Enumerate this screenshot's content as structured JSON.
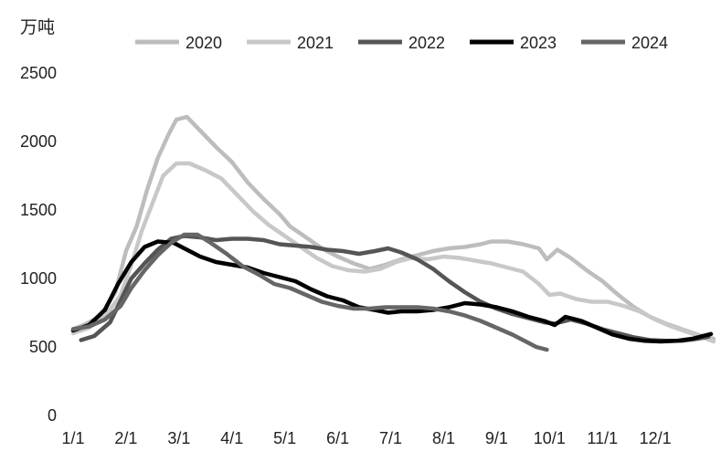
{
  "chart_data": {
    "type": "line",
    "title": "",
    "ylabel": "万吨",
    "xlabel": "",
    "ylim": [
      0,
      2500
    ],
    "yticks": [
      0,
      500,
      1000,
      1500,
      2000,
      2500
    ],
    "x_tick_labels": [
      "1/1",
      "2/1",
      "3/1",
      "4/1",
      "5/1",
      "6/1",
      "7/1",
      "8/1",
      "9/1",
      "10/1",
      "11/1",
      "12/1"
    ],
    "x_unit": "month (1 = Jan 1, 13 = next Jan 1)",
    "grid": false,
    "legend_position": "top",
    "series": [
      {
        "name": "2020",
        "color": "#bdbdbd",
        "points": [
          [
            1.0,
            630
          ],
          [
            1.2,
            660
          ],
          [
            1.5,
            720
          ],
          [
            1.8,
            900
          ],
          [
            2.0,
            1200
          ],
          [
            2.2,
            1380
          ],
          [
            2.4,
            1650
          ],
          [
            2.6,
            1880
          ],
          [
            2.8,
            2050
          ],
          [
            2.95,
            2160
          ],
          [
            3.15,
            2180
          ],
          [
            3.4,
            2080
          ],
          [
            3.7,
            1960
          ],
          [
            4.0,
            1850
          ],
          [
            4.3,
            1700
          ],
          [
            4.6,
            1580
          ],
          [
            4.9,
            1470
          ],
          [
            5.1,
            1380
          ],
          [
            5.4,
            1300
          ],
          [
            5.7,
            1220
          ],
          [
            6.0,
            1160
          ],
          [
            6.3,
            1110
          ],
          [
            6.6,
            1070
          ],
          [
            6.9,
            1100
          ],
          [
            7.2,
            1140
          ],
          [
            7.5,
            1170
          ],
          [
            7.8,
            1200
          ],
          [
            8.1,
            1220
          ],
          [
            8.4,
            1230
          ],
          [
            8.7,
            1250
          ],
          [
            8.9,
            1270
          ],
          [
            9.2,
            1270
          ],
          [
            9.5,
            1250
          ],
          [
            9.8,
            1220
          ],
          [
            9.95,
            1140
          ],
          [
            10.15,
            1210
          ],
          [
            10.4,
            1150
          ],
          [
            10.7,
            1060
          ],
          [
            11.0,
            980
          ],
          [
            11.3,
            880
          ],
          [
            11.6,
            790
          ],
          [
            11.9,
            720
          ],
          [
            12.2,
            670
          ],
          [
            12.5,
            630
          ],
          [
            12.8,
            590
          ],
          [
            13.1,
            560
          ]
        ]
      },
      {
        "name": "2021",
        "color": "#c8c8c8",
        "points": [
          [
            1.0,
            600
          ],
          [
            1.3,
            640
          ],
          [
            1.6,
            720
          ],
          [
            1.9,
            880
          ],
          [
            2.1,
            1100
          ],
          [
            2.3,
            1350
          ],
          [
            2.5,
            1550
          ],
          [
            2.7,
            1750
          ],
          [
            2.95,
            1840
          ],
          [
            3.2,
            1840
          ],
          [
            3.5,
            1790
          ],
          [
            3.8,
            1730
          ],
          [
            4.1,
            1610
          ],
          [
            4.4,
            1490
          ],
          [
            4.7,
            1390
          ],
          [
            5.0,
            1310
          ],
          [
            5.3,
            1230
          ],
          [
            5.6,
            1150
          ],
          [
            5.9,
            1090
          ],
          [
            6.2,
            1060
          ],
          [
            6.5,
            1050
          ],
          [
            6.8,
            1070
          ],
          [
            7.1,
            1120
          ],
          [
            7.4,
            1150
          ],
          [
            7.7,
            1140
          ],
          [
            8.0,
            1160
          ],
          [
            8.3,
            1150
          ],
          [
            8.6,
            1130
          ],
          [
            8.9,
            1110
          ],
          [
            9.2,
            1080
          ],
          [
            9.5,
            1050
          ],
          [
            9.8,
            960
          ],
          [
            10.0,
            880
          ],
          [
            10.2,
            890
          ],
          [
            10.5,
            850
          ],
          [
            10.8,
            830
          ],
          [
            11.1,
            830
          ],
          [
            11.4,
            800
          ],
          [
            11.7,
            760
          ],
          [
            12.0,
            700
          ],
          [
            12.3,
            650
          ],
          [
            12.6,
            610
          ],
          [
            12.9,
            570
          ],
          [
            13.1,
            540
          ]
        ]
      },
      {
        "name": "2022",
        "color": "#555555",
        "points": [
          [
            1.15,
            550
          ],
          [
            1.4,
            580
          ],
          [
            1.7,
            680
          ],
          [
            1.9,
            840
          ],
          [
            2.1,
            1000
          ],
          [
            2.35,
            1110
          ],
          [
            2.6,
            1210
          ],
          [
            2.85,
            1290
          ],
          [
            3.1,
            1310
          ],
          [
            3.4,
            1300
          ],
          [
            3.7,
            1280
          ],
          [
            4.0,
            1290
          ],
          [
            4.3,
            1290
          ],
          [
            4.6,
            1280
          ],
          [
            4.9,
            1250
          ],
          [
            5.2,
            1240
          ],
          [
            5.5,
            1230
          ],
          [
            5.8,
            1210
          ],
          [
            6.1,
            1200
          ],
          [
            6.4,
            1180
          ],
          [
            6.7,
            1200
          ],
          [
            6.95,
            1220
          ],
          [
            7.2,
            1190
          ],
          [
            7.5,
            1140
          ],
          [
            7.8,
            1070
          ],
          [
            8.1,
            980
          ],
          [
            8.4,
            900
          ],
          [
            8.7,
            830
          ],
          [
            9.0,
            780
          ],
          [
            9.3,
            740
          ],
          [
            9.6,
            710
          ],
          [
            9.9,
            680
          ],
          [
            10.1,
            670
          ],
          [
            10.4,
            700
          ],
          [
            10.7,
            670
          ],
          [
            11.0,
            630
          ],
          [
            11.3,
            600
          ],
          [
            11.6,
            570
          ],
          [
            11.9,
            550
          ],
          [
            12.2,
            545
          ],
          [
            12.5,
            545
          ],
          [
            12.8,
            560
          ],
          [
            13.0,
            575
          ]
        ]
      },
      {
        "name": "2023",
        "color": "#000000",
        "points": [
          [
            1.0,
            620
          ],
          [
            1.3,
            660
          ],
          [
            1.6,
            770
          ],
          [
            1.85,
            960
          ],
          [
            2.1,
            1120
          ],
          [
            2.35,
            1230
          ],
          [
            2.6,
            1270
          ],
          [
            2.9,
            1260
          ],
          [
            3.15,
            1210
          ],
          [
            3.4,
            1160
          ],
          [
            3.7,
            1120
          ],
          [
            4.0,
            1100
          ],
          [
            4.3,
            1080
          ],
          [
            4.6,
            1040
          ],
          [
            4.9,
            1010
          ],
          [
            5.2,
            980
          ],
          [
            5.5,
            920
          ],
          [
            5.8,
            870
          ],
          [
            6.1,
            840
          ],
          [
            6.4,
            790
          ],
          [
            6.7,
            770
          ],
          [
            6.95,
            750
          ],
          [
            7.2,
            760
          ],
          [
            7.5,
            760
          ],
          [
            7.8,
            770
          ],
          [
            8.1,
            790
          ],
          [
            8.4,
            820
          ],
          [
            8.7,
            810
          ],
          [
            9.0,
            790
          ],
          [
            9.3,
            760
          ],
          [
            9.6,
            720
          ],
          [
            9.9,
            690
          ],
          [
            10.1,
            660
          ],
          [
            10.3,
            720
          ],
          [
            10.6,
            690
          ],
          [
            10.9,
            640
          ],
          [
            11.2,
            590
          ],
          [
            11.5,
            560
          ],
          [
            11.8,
            545
          ],
          [
            12.1,
            540
          ],
          [
            12.4,
            545
          ],
          [
            12.7,
            560
          ],
          [
            12.9,
            580
          ],
          [
            13.05,
            595
          ]
        ]
      },
      {
        "name": "2024",
        "color": "#666666",
        "points": [
          [
            1.0,
            630
          ],
          [
            1.3,
            650
          ],
          [
            1.6,
            700
          ],
          [
            1.9,
            800
          ],
          [
            2.1,
            930
          ],
          [
            2.35,
            1060
          ],
          [
            2.6,
            1170
          ],
          [
            2.85,
            1260
          ],
          [
            3.1,
            1320
          ],
          [
            3.35,
            1320
          ],
          [
            3.6,
            1260
          ],
          [
            3.9,
            1180
          ],
          [
            4.2,
            1090
          ],
          [
            4.5,
            1030
          ],
          [
            4.8,
            960
          ],
          [
            5.1,
            930
          ],
          [
            5.4,
            880
          ],
          [
            5.7,
            830
          ],
          [
            6.0,
            800
          ],
          [
            6.3,
            780
          ],
          [
            6.6,
            780
          ],
          [
            6.9,
            790
          ],
          [
            7.2,
            790
          ],
          [
            7.5,
            790
          ],
          [
            7.8,
            780
          ],
          [
            8.1,
            760
          ],
          [
            8.4,
            730
          ],
          [
            8.7,
            690
          ],
          [
            9.0,
            640
          ],
          [
            9.3,
            590
          ],
          [
            9.55,
            540
          ],
          [
            9.75,
            500
          ],
          [
            9.95,
            480
          ]
        ]
      }
    ]
  }
}
